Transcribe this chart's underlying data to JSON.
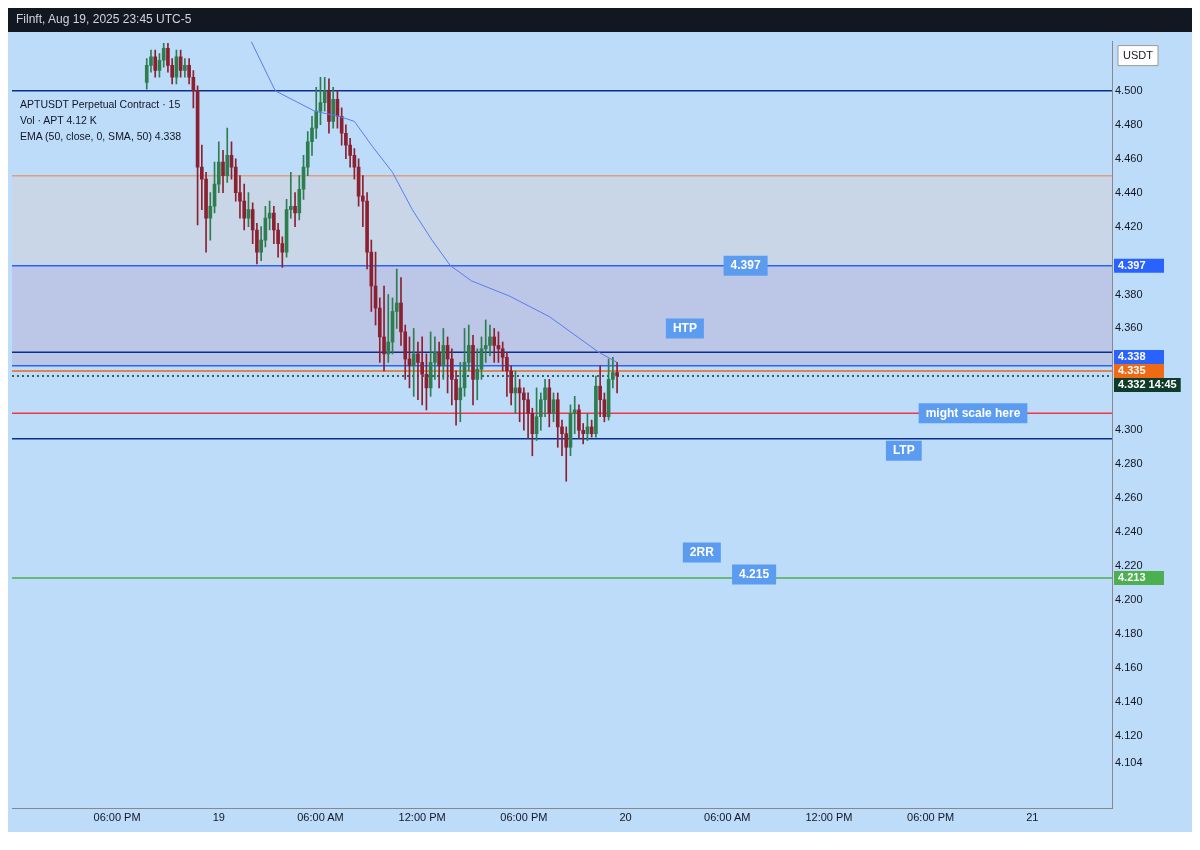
{
  "chart_data": {
    "type": "candlestick",
    "title": "APTUSDT Perpetual Contract · 15",
    "subtitle": "Filnft, Aug 19, 2025 23:45 UTC-5",
    "ylabel": "USDT",
    "x": [
      "2025-08-18T19:45",
      "2025-08-18T20:00",
      "2025-08-18T20:15",
      "2025-08-18T20:30",
      "2025-08-18T20:45",
      "2025-08-18T21:00",
      "2025-08-18T21:15",
      "2025-08-18T21:30",
      "2025-08-18T21:45",
      "2025-08-18T22:00",
      "2025-08-18T22:15",
      "2025-08-18T22:30",
      "2025-08-18T22:45",
      "2025-08-18T23:00",
      "2025-08-18T23:15",
      "2025-08-18T23:30",
      "2025-08-18T23:45",
      "2025-08-19T00:00",
      "2025-08-19T00:15",
      "2025-08-19T00:30",
      "2025-08-19T00:45",
      "2025-08-19T01:00",
      "2025-08-19T01:15",
      "2025-08-19T01:30",
      "2025-08-19T01:45",
      "2025-08-19T02:00",
      "2025-08-19T02:15",
      "2025-08-19T02:30",
      "2025-08-19T02:45",
      "2025-08-19T03:00",
      "2025-08-19T03:15",
      "2025-08-19T03:30",
      "2025-08-19T03:45",
      "2025-08-19T04:00",
      "2025-08-19T04:15",
      "2025-08-19T04:30",
      "2025-08-19T04:45",
      "2025-08-19T05:00",
      "2025-08-19T05:15",
      "2025-08-19T05:30",
      "2025-08-19T05:45",
      "2025-08-19T06:00",
      "2025-08-19T06:15",
      "2025-08-19T06:30",
      "2025-08-19T06:45",
      "2025-08-19T07:00",
      "2025-08-19T07:15",
      "2025-08-19T07:30",
      "2025-08-19T07:45",
      "2025-08-19T08:00",
      "2025-08-19T08:15",
      "2025-08-19T08:30",
      "2025-08-19T08:45",
      "2025-08-19T09:00",
      "2025-08-19T09:15",
      "2025-08-19T09:30",
      "2025-08-19T09:45",
      "2025-08-19T10:00",
      "2025-08-19T10:15",
      "2025-08-19T10:30",
      "2025-08-19T10:45",
      "2025-08-19T11:00",
      "2025-08-19T11:15",
      "2025-08-19T11:30",
      "2025-08-19T11:45",
      "2025-08-19T12:00",
      "2025-08-19T12:15",
      "2025-08-19T12:30",
      "2025-08-19T12:45",
      "2025-08-19T13:00",
      "2025-08-19T13:15",
      "2025-08-19T13:30",
      "2025-08-19T13:45",
      "2025-08-19T14:00",
      "2025-08-19T14:15",
      "2025-08-19T14:30",
      "2025-08-19T14:45",
      "2025-08-19T15:00",
      "2025-08-19T15:15",
      "2025-08-19T15:30",
      "2025-08-19T15:45",
      "2025-08-19T16:00",
      "2025-08-19T16:15",
      "2025-08-19T16:30",
      "2025-08-19T16:45",
      "2025-08-19T17:00",
      "2025-08-19T17:15",
      "2025-08-19T17:30",
      "2025-08-19T17:45",
      "2025-08-19T18:00",
      "2025-08-19T18:15",
      "2025-08-19T18:30",
      "2025-08-19T18:45",
      "2025-08-19T19:00",
      "2025-08-19T19:15",
      "2025-08-19T19:30",
      "2025-08-19T19:45",
      "2025-08-19T20:00",
      "2025-08-19T20:15",
      "2025-08-19T20:30",
      "2025-08-19T20:45",
      "2025-08-19T21:00",
      "2025-08-19T21:15",
      "2025-08-19T21:30",
      "2025-08-19T21:45",
      "2025-08-19T22:00",
      "2025-08-19T22:15",
      "2025-08-19T22:30",
      "2025-08-19T22:45",
      "2025-08-19T23:00",
      "2025-08-19T23:15",
      "2025-08-19T23:30"
    ],
    "ohlc": [
      [
        4.505,
        4.519,
        4.501,
        4.515
      ],
      [
        4.515,
        4.524,
        4.511,
        4.52
      ],
      [
        4.52,
        4.524,
        4.508,
        4.512
      ],
      [
        4.512,
        4.522,
        4.508,
        4.518
      ],
      [
        4.518,
        4.528,
        4.514,
        4.525
      ],
      [
        4.525,
        4.528,
        4.511,
        4.515
      ],
      [
        4.515,
        4.519,
        4.504,
        4.508
      ],
      [
        4.508,
        4.524,
        4.504,
        4.52
      ],
      [
        4.52,
        4.524,
        4.508,
        4.512
      ],
      [
        4.512,
        4.519,
        4.508,
        4.515
      ],
      [
        4.515,
        4.519,
        4.504,
        4.508
      ],
      [
        4.508,
        4.512,
        4.49,
        4.5
      ],
      [
        4.5,
        4.503,
        4.421,
        4.455
      ],
      [
        4.455,
        4.468,
        4.43,
        4.448
      ],
      [
        4.448,
        4.452,
        4.405,
        4.425
      ],
      [
        4.425,
        4.44,
        4.412,
        4.432
      ],
      [
        4.432,
        4.458,
        4.428,
        4.445
      ],
      [
        4.445,
        4.47,
        4.44,
        4.458
      ],
      [
        4.458,
        4.465,
        4.44,
        4.45
      ],
      [
        4.45,
        4.478,
        4.446,
        4.462
      ],
      [
        4.462,
        4.47,
        4.448,
        4.455
      ],
      [
        4.455,
        4.46,
        4.435,
        4.44
      ],
      [
        4.44,
        4.45,
        4.425,
        4.435
      ],
      [
        4.435,
        4.445,
        4.418,
        4.425
      ],
      [
        4.425,
        4.44,
        4.42,
        4.43
      ],
      [
        4.43,
        4.434,
        4.41,
        4.418
      ],
      [
        4.418,
        4.422,
        4.398,
        4.405
      ],
      [
        4.405,
        4.42,
        4.4,
        4.412
      ],
      [
        4.412,
        4.432,
        4.408,
        4.425
      ],
      [
        4.425,
        4.435,
        4.418,
        4.428
      ],
      [
        4.428,
        4.432,
        4.41,
        4.418
      ],
      [
        4.418,
        4.422,
        4.402,
        4.41
      ],
      [
        4.41,
        4.414,
        4.396,
        4.405
      ],
      [
        4.405,
        4.436,
        4.402,
        4.43
      ],
      [
        4.43,
        4.452,
        4.425,
        4.432
      ],
      [
        4.432,
        4.44,
        4.42,
        4.428
      ],
      [
        4.428,
        4.45,
        4.424,
        4.442
      ],
      [
        4.442,
        4.462,
        4.436,
        4.455
      ],
      [
        4.455,
        4.476,
        4.45,
        4.47
      ],
      [
        4.47,
        4.485,
        4.462,
        4.478
      ],
      [
        4.478,
        4.502,
        4.472,
        4.488
      ],
      [
        4.488,
        4.508,
        4.48,
        4.493
      ],
      [
        4.493,
        4.508,
        4.488,
        4.5
      ],
      [
        4.5,
        4.507,
        4.475,
        4.482
      ],
      [
        4.482,
        4.502,
        4.478,
        4.495
      ],
      [
        4.495,
        4.5,
        4.478,
        4.485
      ],
      [
        4.485,
        4.49,
        4.468,
        4.475
      ],
      [
        4.475,
        4.48,
        4.46,
        4.468
      ],
      [
        4.468,
        4.472,
        4.455,
        4.462
      ],
      [
        4.462,
        4.466,
        4.448,
        4.455
      ],
      [
        4.455,
        4.46,
        4.432,
        4.438
      ],
      [
        4.438,
        4.45,
        4.42,
        4.435
      ],
      [
        4.435,
        4.44,
        4.395,
        4.405
      ],
      [
        4.405,
        4.412,
        4.37,
        4.385
      ],
      [
        4.385,
        4.405,
        4.362,
        4.372
      ],
      [
        4.372,
        4.378,
        4.34,
        4.355
      ],
      [
        4.355,
        4.385,
        4.335,
        4.345
      ],
      [
        4.345,
        4.38,
        4.34,
        4.352
      ],
      [
        4.352,
        4.378,
        4.345,
        4.37
      ],
      [
        4.37,
        4.395,
        4.36,
        4.375
      ],
      [
        4.375,
        4.39,
        4.35,
        4.358
      ],
      [
        4.358,
        4.362,
        4.33,
        4.342
      ],
      [
        4.342,
        4.355,
        4.325,
        4.338
      ],
      [
        4.338,
        4.36,
        4.32,
        4.345
      ],
      [
        4.345,
        4.352,
        4.318,
        4.34
      ],
      [
        4.34,
        4.355,
        4.315,
        4.333
      ],
      [
        4.333,
        4.345,
        4.312,
        4.325
      ],
      [
        4.325,
        4.358,
        4.32,
        4.34
      ],
      [
        4.34,
        4.355,
        4.33,
        4.346
      ],
      [
        4.346,
        4.352,
        4.325,
        4.338
      ],
      [
        4.338,
        4.36,
        4.33,
        4.35
      ],
      [
        4.35,
        4.355,
        4.322,
        4.342
      ],
      [
        4.342,
        4.348,
        4.315,
        4.33
      ],
      [
        4.33,
        4.335,
        4.303,
        4.318
      ],
      [
        4.318,
        4.34,
        4.305,
        4.325
      ],
      [
        4.325,
        4.36,
        4.32,
        4.34
      ],
      [
        4.34,
        4.362,
        4.335,
        4.35
      ],
      [
        4.35,
        4.356,
        4.315,
        4.33
      ],
      [
        4.33,
        4.348,
        4.318,
        4.336
      ],
      [
        4.336,
        4.355,
        4.33,
        4.348
      ],
      [
        4.348,
        4.365,
        4.34,
        4.35
      ],
      [
        4.35,
        4.362,
        4.344,
        4.355
      ],
      [
        4.355,
        4.36,
        4.34,
        4.35
      ],
      [
        4.35,
        4.358,
        4.34,
        4.348
      ],
      [
        4.348,
        4.352,
        4.335,
        4.343
      ],
      [
        4.343,
        4.346,
        4.32,
        4.335
      ],
      [
        4.335,
        4.338,
        4.315,
        4.322
      ],
      [
        4.322,
        4.335,
        4.31,
        4.325
      ],
      [
        4.325,
        4.33,
        4.305,
        4.322
      ],
      [
        4.322,
        4.325,
        4.3,
        4.318
      ],
      [
        4.318,
        4.322,
        4.295,
        4.31
      ],
      [
        4.31,
        4.313,
        4.285,
        4.298
      ],
      [
        4.298,
        4.325,
        4.294,
        4.308
      ],
      [
        4.308,
        4.322,
        4.3,
        4.318
      ],
      [
        4.318,
        4.33,
        4.308,
        4.325
      ],
      [
        4.325,
        4.33,
        4.302,
        4.31
      ],
      [
        4.31,
        4.322,
        4.305,
        4.318
      ],
      [
        4.318,
        4.322,
        4.29,
        4.302
      ],
      [
        4.302,
        4.306,
        4.285,
        4.298
      ],
      [
        4.298,
        4.302,
        4.27,
        4.29
      ],
      [
        4.29,
        4.315,
        4.285,
        4.31
      ],
      [
        4.31,
        4.32,
        4.298,
        4.312
      ],
      [
        4.312,
        4.315,
        4.295,
        4.3
      ],
      [
        4.3,
        4.304,
        4.292,
        4.298
      ],
      [
        4.298,
        4.31,
        4.294,
        4.302
      ],
      [
        4.302,
        4.306,
        4.296,
        4.298
      ],
      [
        4.298,
        4.332,
        4.296,
        4.326
      ],
      [
        4.326,
        4.338,
        4.308,
        4.318
      ],
      [
        4.318,
        4.322,
        4.305,
        4.308
      ],
      [
        4.308,
        4.342,
        4.306,
        4.33
      ],
      [
        4.33,
        4.343,
        4.325,
        4.334
      ],
      [
        4.334,
        4.34,
        4.322,
        4.332
      ]
    ],
    "series": [
      {
        "type": "line",
        "color": "#5b7cf0",
        "x": [
          "2025-08-19T01:55",
          "2025-08-19T03:20",
          "2025-08-19T05:40",
          "2025-08-19T07:05",
          "2025-08-19T08:00",
          "2025-08-19T09:05",
          "2025-08-19T10:15",
          "2025-08-19T11:25",
          "2025-08-19T12:35",
          "2025-08-19T13:40",
          "2025-08-19T14:55",
          "2025-08-19T17:10",
          "2025-08-19T19:30",
          "2025-08-19T21:10",
          "2025-08-19T22:25",
          "2025-08-19T23:30"
        ],
        "values": [
          4.529,
          4.5,
          4.488,
          4.485,
          4.482,
          4.467,
          4.452,
          4.43,
          4.412,
          4.397,
          4.388,
          4.379,
          4.367,
          4.355,
          4.346,
          4.34
        ]
      }
    ],
    "xlim": [
      "2025-08-18T11:48",
      "2025-08-21T04:42"
    ],
    "xticks": [
      {
        "value": "2025-08-18T18:00",
        "label": "06:00 PM"
      },
      {
        "value": "2025-08-19T00:00",
        "label": "19"
      },
      {
        "value": "2025-08-19T06:00",
        "label": "06:00 AM"
      },
      {
        "value": "2025-08-19T12:00",
        "label": "12:00 PM"
      },
      {
        "value": "2025-08-19T18:00",
        "label": "06:00 PM"
      },
      {
        "value": "2025-08-20T00:00",
        "label": "20"
      },
      {
        "value": "2025-08-20T06:00",
        "label": "06:00 AM"
      },
      {
        "value": "2025-08-20T12:00",
        "label": "12:00 PM"
      },
      {
        "value": "2025-08-20T18:00",
        "label": "06:00 PM"
      },
      {
        "value": "2025-08-21T00:00",
        "label": "21"
      }
    ],
    "ylim": [
      4.077,
      4.529
    ],
    "yticks": [
      {
        "value": 4.104,
        "label": "4.104"
      },
      {
        "value": 4.12,
        "label": "4.120"
      },
      {
        "value": 4.14,
        "label": "4.140"
      },
      {
        "value": 4.16,
        "label": "4.160"
      },
      {
        "value": 4.18,
        "label": "4.180"
      },
      {
        "value": 4.2,
        "label": "4.200"
      },
      {
        "value": 4.22,
        "label": "4.220"
      },
      {
        "value": 4.24,
        "label": "4.240"
      },
      {
        "value": 4.26,
        "label": "4.260"
      },
      {
        "value": 4.28,
        "label": "4.280"
      },
      {
        "value": 4.3,
        "label": "4.300"
      },
      {
        "value": 4.36,
        "label": "4.360"
      },
      {
        "value": 4.38,
        "label": "4.380"
      },
      {
        "value": 4.42,
        "label": "4.420"
      },
      {
        "value": 4.44,
        "label": "4.440"
      },
      {
        "value": 4.46,
        "label": "4.460"
      },
      {
        "value": 4.48,
        "label": "4.480"
      },
      {
        "value": 4.5,
        "label": "4.500"
      }
    ],
    "bands": [
      {
        "axis": "y",
        "from": 4.397,
        "to": 4.45,
        "color": "#c9d6e8"
      },
      {
        "axis": "y",
        "from": 4.338,
        "to": 4.397,
        "color": "#bcc6e6"
      }
    ],
    "ref_lines": [
      {
        "axis": "y",
        "value": 4.5,
        "color": "#0d2f8a"
      },
      {
        "axis": "y",
        "value": 4.45,
        "color": "#e0a080"
      },
      {
        "axis": "y",
        "value": 4.397,
        "label": "4.397",
        "color": "#2962ff"
      },
      {
        "axis": "y",
        "value": 4.338,
        "label": "4.338",
        "color": "#2962ff"
      },
      {
        "axis": "y",
        "value": 4.335,
        "label": "4.335",
        "color": "#f06a14"
      },
      {
        "axis": "y",
        "value": 4.332,
        "label": "4.332\n14:45",
        "color": "#0e3b2a",
        "line_style": "dotted"
      },
      {
        "axis": "y",
        "value": 4.346,
        "color": "#0d2f8a"
      },
      {
        "axis": "y",
        "value": 4.31,
        "color": "#f23645"
      },
      {
        "axis": "y",
        "value": 4.295,
        "color": "#0d2f8a"
      },
      {
        "axis": "y",
        "value": 4.213,
        "label": "4.213",
        "color": "#4caf50"
      }
    ],
    "annotations": [
      "Vol · APT 4.12 K",
      "EMA (50, close, 0, SMA, 50) 4.338",
      {
        "text": "4.397",
        "x": "2025-08-20T07:05",
        "y": 4.397
      },
      {
        "text": "HTP",
        "x": "2025-08-20T03:30",
        "y": 4.36
      },
      {
        "text": "might scale here",
        "x": "2025-08-20T20:30",
        "y": 4.31
      },
      {
        "text": "LTP",
        "x": "2025-08-20T16:25",
        "y": 4.288
      },
      {
        "text": "2RR",
        "x": "2025-08-20T04:30",
        "y": 4.228
      },
      {
        "text": "4.215",
        "x": "2025-08-20T07:35",
        "y": 4.215
      }
    ],
    "legend": "right",
    "grid": false
  }
}
